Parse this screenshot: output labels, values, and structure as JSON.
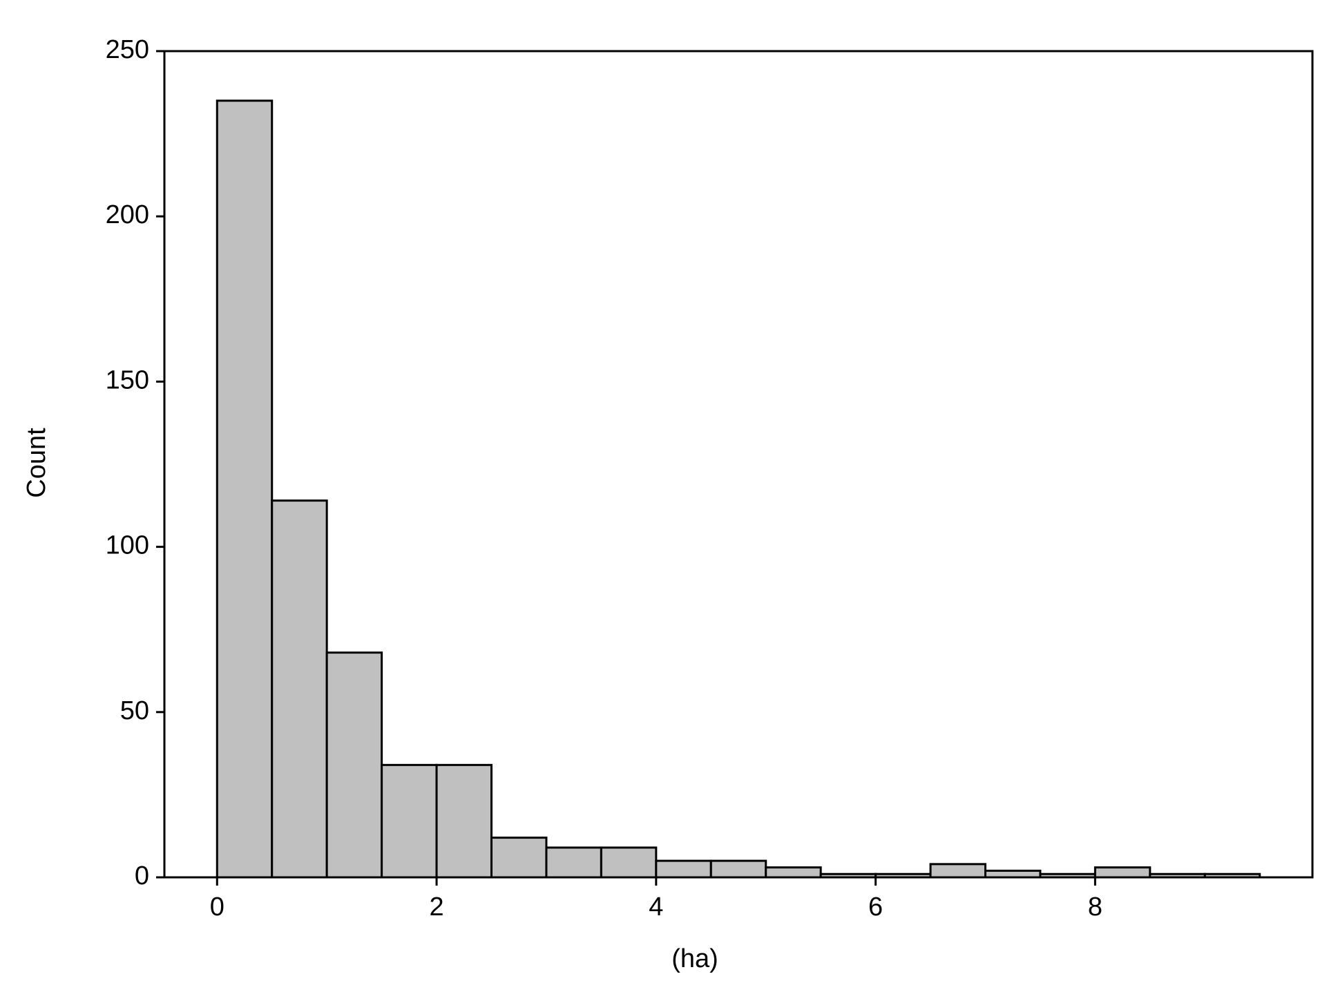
{
  "chart_data": {
    "type": "histogram",
    "bins": [
      0,
      0.5,
      1,
      1.5,
      2,
      2.5,
      3,
      3.5,
      4,
      4.5,
      5,
      5.5,
      6,
      6.5,
      7,
      7.5,
      8,
      8.5,
      9,
      9.5
    ],
    "counts": [
      235,
      114,
      68,
      34,
      34,
      12,
      9,
      9,
      5,
      5,
      3,
      1,
      1,
      4,
      2,
      1,
      3,
      1,
      1
    ],
    "color": "#c0c0c0",
    "x_label": "(ha)",
    "y_label": "Count",
    "xlim": [
      -0.48,
      9.98
    ],
    "ylim": [
      0,
      250
    ],
    "xticks": [
      0,
      2,
      4,
      6,
      8
    ],
    "yticks": [
      0,
      50,
      100,
      150,
      200,
      250
    ],
    "grid": false
  }
}
